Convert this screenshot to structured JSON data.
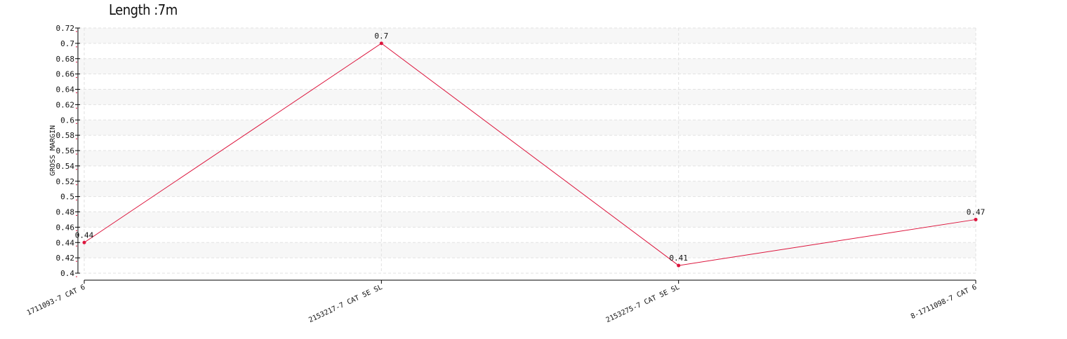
{
  "chart_data": {
    "type": "line",
    "title": "Length :7m",
    "xlabel": "",
    "ylabel": "GROSS MARGIN",
    "categories": [
      "1711093-7 CAT 6",
      "2153217-7 CAT 5E SL",
      "2153275-7  CAT 5E SL",
      "8-1711098-7 CAT 6"
    ],
    "series": [
      {
        "values": [
          0.44,
          0.7,
          0.41,
          0.47
        ],
        "labels": [
          "0.44",
          "0.7",
          "0.41",
          "0.47"
        ]
      }
    ],
    "ylim": [
      0.4,
      0.72
    ],
    "yticks": [
      "0.4",
      "0.42",
      "0.44",
      "0.46",
      "0.48",
      "0.5",
      "0.52",
      "0.54",
      "0.56",
      "0.58",
      "0.6",
      "0.62",
      "0.64",
      "0.66",
      "0.68",
      "0.7",
      "0.72"
    ],
    "grid": true,
    "legend": "none",
    "colors": {
      "line": "#dc143c",
      "axis": "#000000",
      "grid": "#e2e2e2",
      "band": "#f7f7f7"
    }
  }
}
